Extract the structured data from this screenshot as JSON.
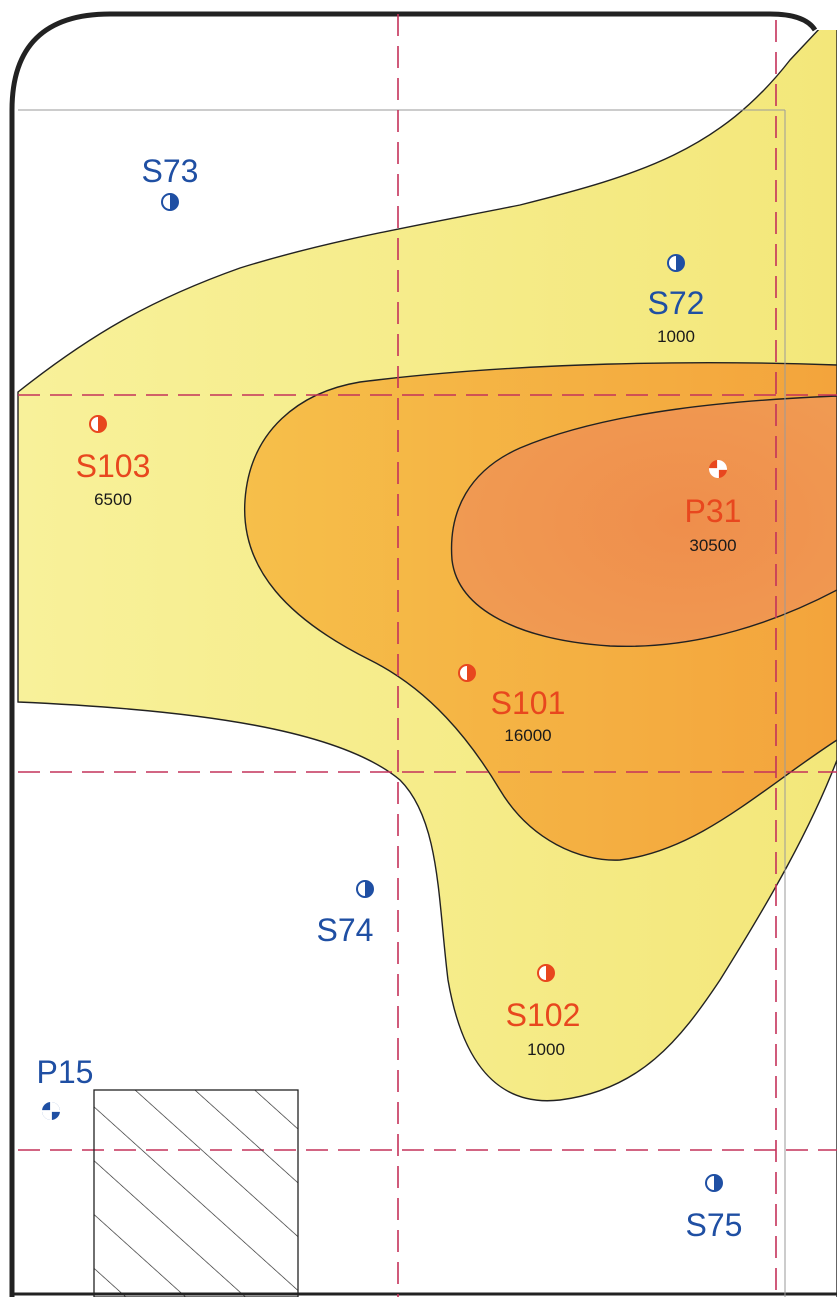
{
  "colors": {
    "contour_low": "#f6ef8a",
    "contour_mid": "#f6b63c",
    "contour_high": "#ef8a4a",
    "dashed_grid": "#c4325a",
    "frame": "#222222",
    "label_blue": "#1f4fa3",
    "label_red": "#e8471e"
  },
  "wells": [
    {
      "id": "S73",
      "type": "half-circle-icon",
      "color": "blue"
    },
    {
      "id": "S72",
      "value": "1000",
      "type": "half-circle-icon",
      "color": "blue"
    },
    {
      "id": "S103",
      "value": "6500",
      "type": "half-circle-icon",
      "color": "red"
    },
    {
      "id": "P31",
      "value": "30500",
      "type": "cross-circle-icon",
      "color": "red"
    },
    {
      "id": "S101",
      "value": "16000",
      "type": "half-circle-icon",
      "color": "red"
    },
    {
      "id": "S74",
      "type": "half-circle-icon",
      "color": "blue"
    },
    {
      "id": "S102",
      "value": "1000",
      "type": "half-circle-icon",
      "color": "red"
    },
    {
      "id": "P15",
      "type": "cross-circle-icon",
      "color": "blue"
    },
    {
      "id": "S75",
      "type": "half-circle-icon",
      "color": "blue"
    }
  ]
}
